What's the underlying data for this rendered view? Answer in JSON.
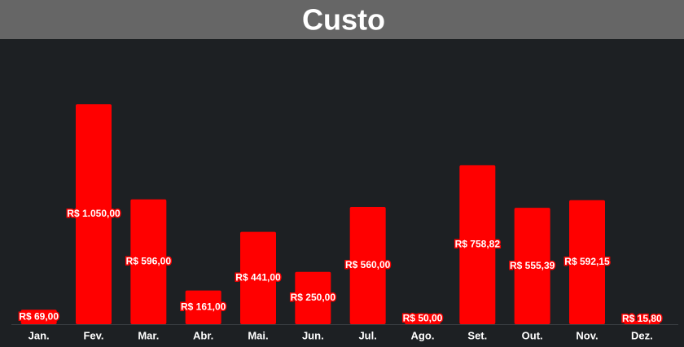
{
  "chart_data": {
    "type": "bar",
    "title": "Custo",
    "categories": [
      "Jan.",
      "Fev.",
      "Mar.",
      "Abr.",
      "Mai.",
      "Jun.",
      "Jul.",
      "Ago.",
      "Set.",
      "Out.",
      "Nov.",
      "Dez."
    ],
    "values": [
      69,
      1050,
      596,
      161,
      441,
      250,
      560,
      50,
      758.82,
      555.39,
      592.15,
      15.8
    ],
    "value_labels": [
      "R$ 69,00",
      "R$ 1.050,00",
      "R$ 596,00",
      "R$ 161,00",
      "R$ 441,00",
      "R$ 250,00",
      "R$ 560,00",
      "R$ 50,00",
      "R$ 758,82",
      "R$ 555,39",
      "R$ 592,15",
      "R$ 15,80"
    ],
    "color": "#ff0000"
  }
}
